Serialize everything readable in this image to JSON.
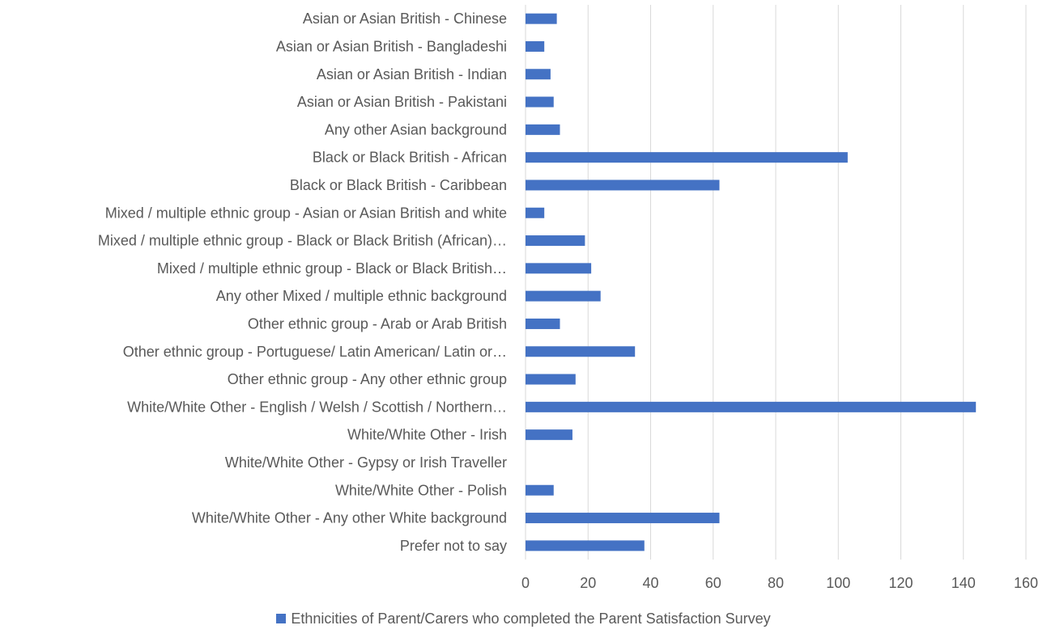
{
  "chart_data": {
    "type": "bar",
    "orientation": "horizontal",
    "categories": [
      "Asian or Asian British - Chinese",
      "Asian or Asian British - Bangladeshi",
      "Asian or Asian British - Indian",
      "Asian or Asian British - Pakistani",
      "Any other Asian background",
      "Black or Black British - African",
      "Black or Black British - Caribbean",
      "Mixed / multiple ethnic group - Asian or Asian British and white",
      "Mixed / multiple ethnic group - Black or Black British (African)…",
      "Mixed / multiple ethnic group - Black or Black British…",
      "Any other Mixed / multiple ethnic background",
      "Other ethnic group - Arab or Arab British",
      "Other ethnic group - Portuguese/ Latin American/ Latin or…",
      "Other ethnic group - Any other ethnic group",
      "White/White Other - English / Welsh / Scottish / Northern…",
      "White/White Other - Irish",
      "White/White Other - Gypsy or Irish Traveller",
      "White/White Other - Polish",
      "White/White Other - Any other White background",
      "Prefer not to say"
    ],
    "series": [
      {
        "name": "Ethnicities of Parent/Carers who completed the Parent Satisfaction Survey",
        "values": [
          10,
          6,
          8,
          9,
          11,
          103,
          62,
          6,
          19,
          21,
          24,
          11,
          35,
          16,
          144,
          15,
          0,
          9,
          62,
          38
        ]
      }
    ],
    "xaxis": {
      "tick_labels": [
        "0",
        "20",
        "40",
        "60",
        "80",
        "100",
        "120",
        "140",
        "160"
      ]
    },
    "xlim": [
      0,
      160
    ],
    "grid": true,
    "legend_position": "bottom",
    "bar_color": "#4472C4",
    "text_color": "#595959",
    "grid_color": "#D9D9D9"
  }
}
